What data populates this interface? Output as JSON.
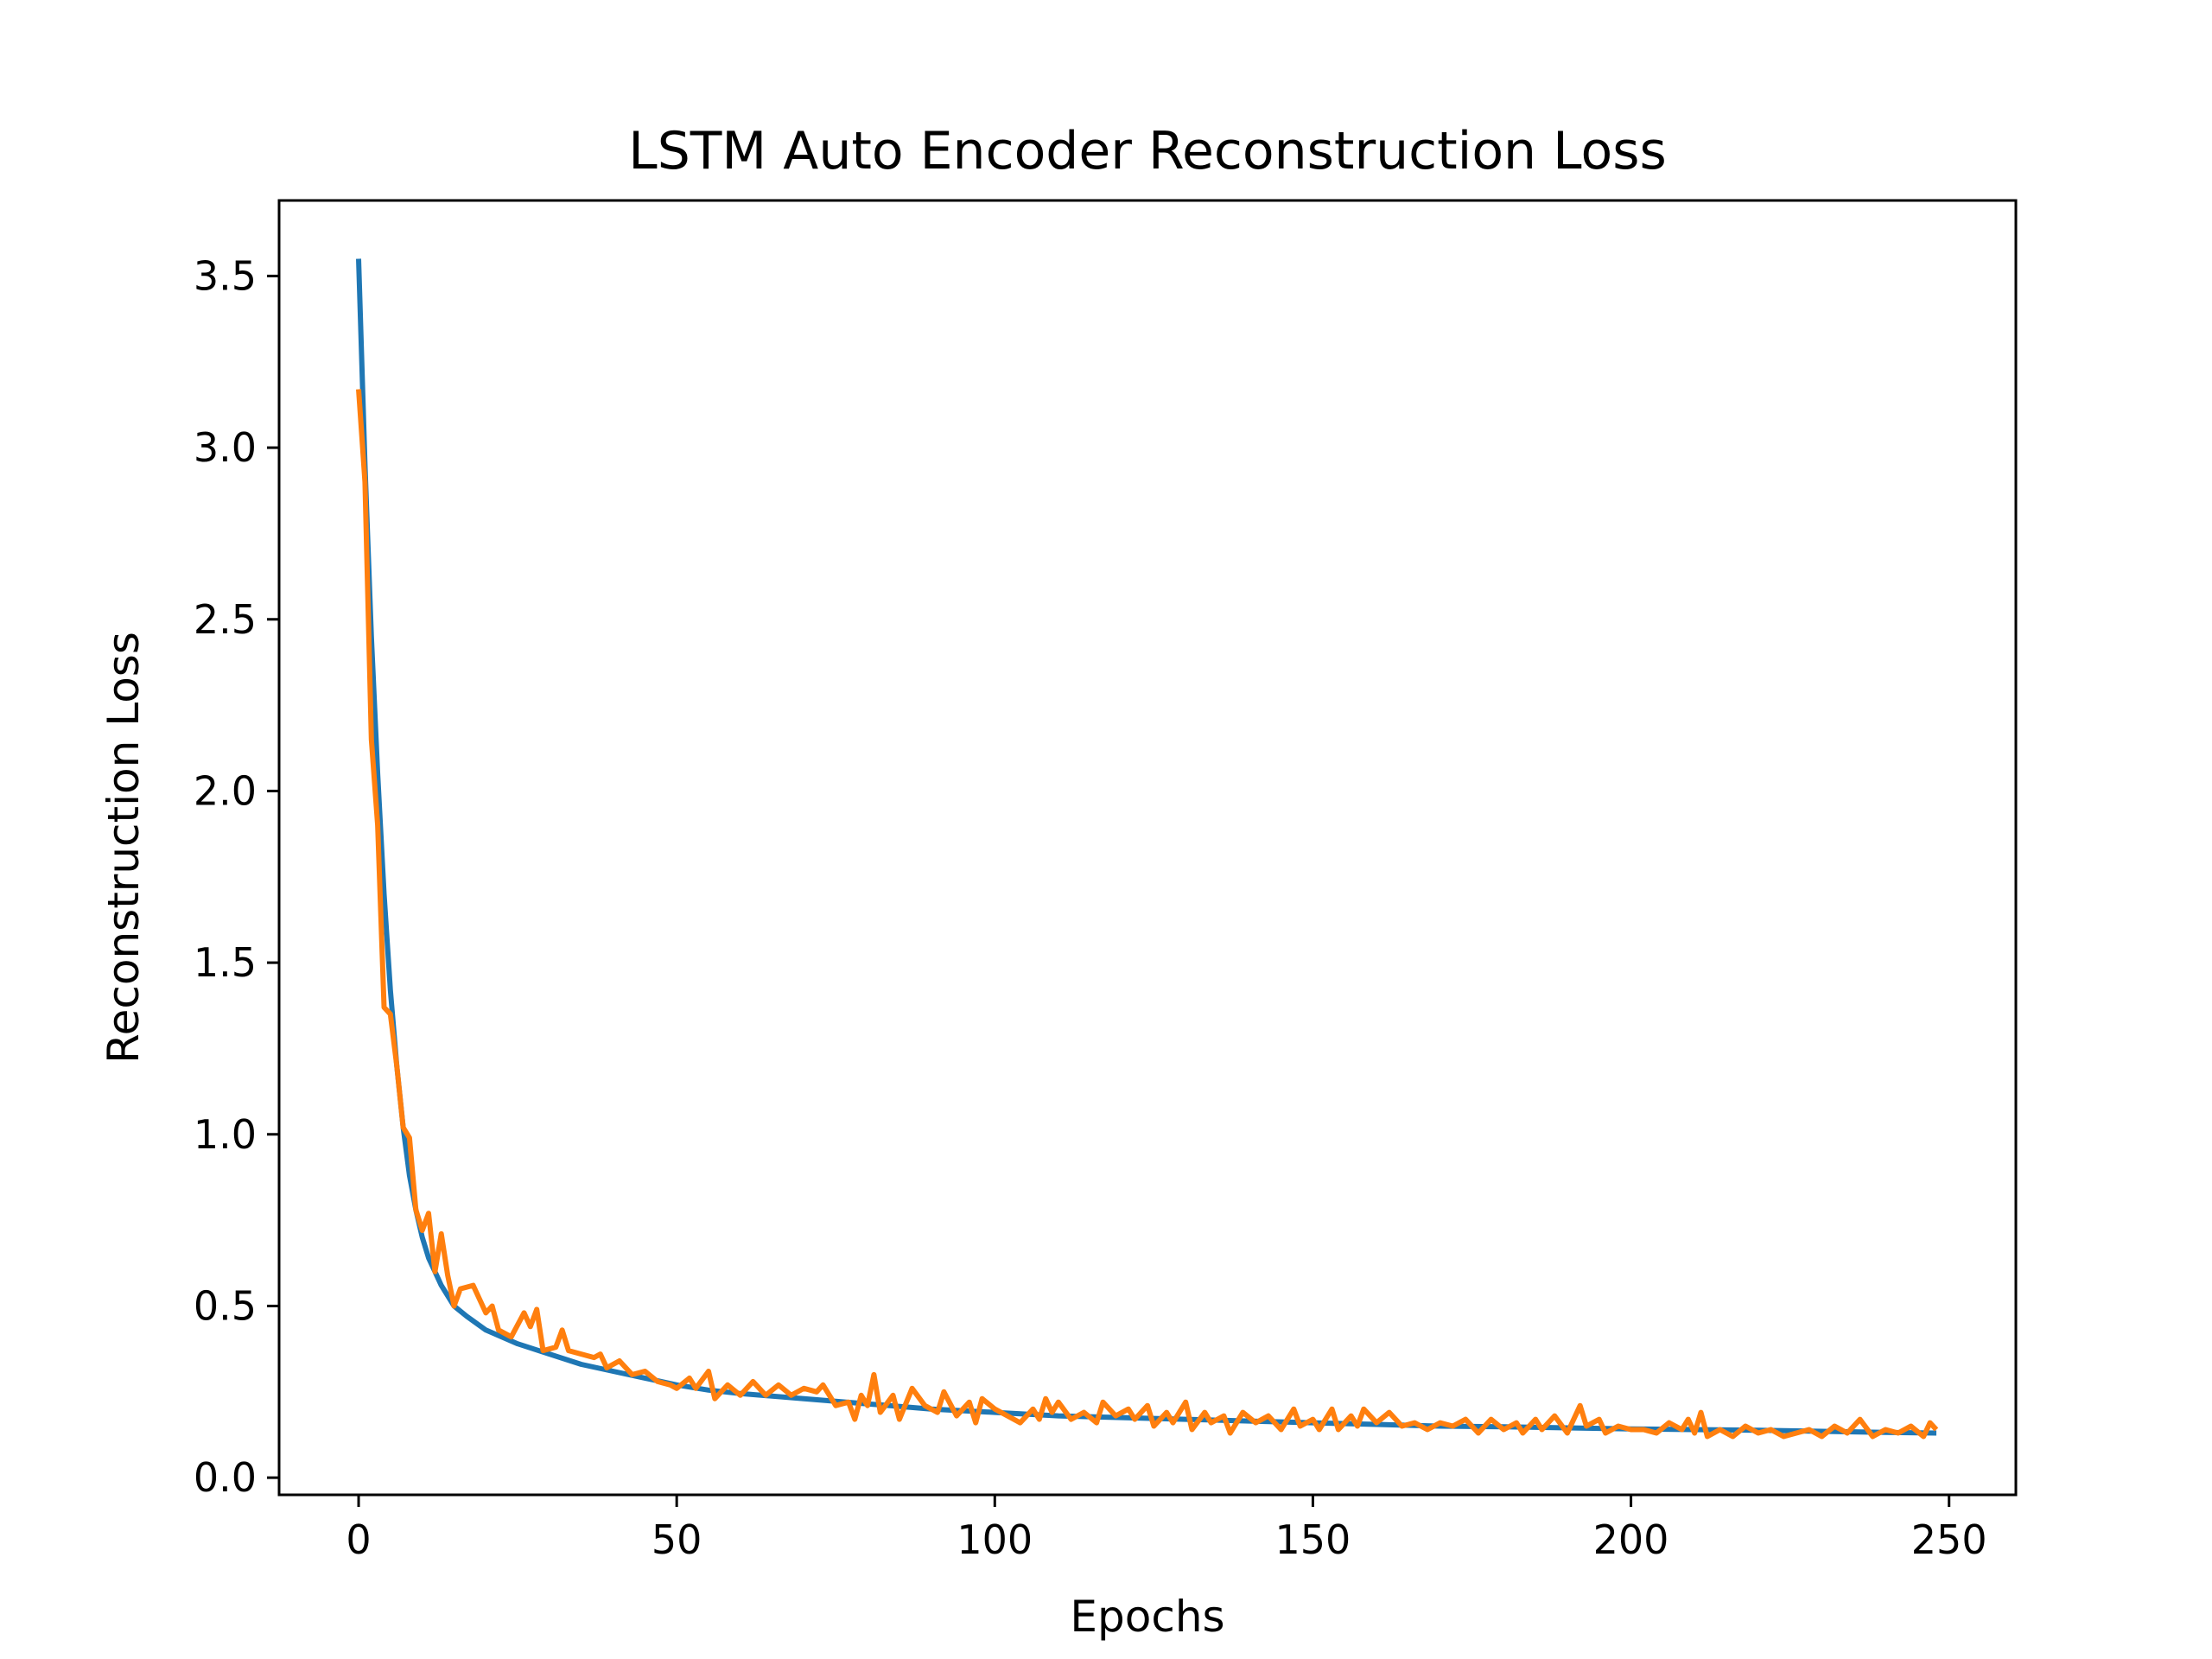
{
  "chart_data": {
    "type": "line",
    "title": "LSTM Auto Encoder Reconstruction Loss",
    "xlabel": "Epochs",
    "ylabel": "Reconstruction Loss",
    "xlim": [
      -12.5,
      260.5
    ],
    "ylim": [
      -0.05,
      3.72
    ],
    "xticks": [
      0,
      50,
      100,
      150,
      200,
      250
    ],
    "yticks": [
      0.0,
      0.5,
      1.0,
      1.5,
      2.0,
      2.5,
      3.0,
      3.5
    ],
    "xtick_labels": [
      "0",
      "50",
      "100",
      "150",
      "200",
      "250"
    ],
    "ytick_labels": [
      "0.0",
      "0.5",
      "1.0",
      "1.5",
      "2.0",
      "2.5",
      "3.0",
      "3.5"
    ],
    "grid": false,
    "series": [
      {
        "color": "#1f77b4",
        "points": [
          [
            0,
            3.55
          ],
          [
            1,
            2.95
          ],
          [
            2,
            2.45
          ],
          [
            3,
            2.05
          ],
          [
            4,
            1.7
          ],
          [
            5,
            1.42
          ],
          [
            6,
            1.2
          ],
          [
            7,
            1.02
          ],
          [
            8,
            0.88
          ],
          [
            9,
            0.78
          ],
          [
            10,
            0.7
          ],
          [
            11,
            0.64
          ],
          [
            12,
            0.6
          ],
          [
            13,
            0.56
          ],
          [
            14,
            0.53
          ],
          [
            15,
            0.5
          ],
          [
            17,
            0.47
          ],
          [
            20,
            0.43
          ],
          [
            25,
            0.39
          ],
          [
            30,
            0.36
          ],
          [
            35,
            0.33
          ],
          [
            40,
            0.31
          ],
          [
            45,
            0.29
          ],
          [
            50,
            0.27
          ],
          [
            55,
            0.255
          ],
          [
            60,
            0.245
          ],
          [
            70,
            0.23
          ],
          [
            80,
            0.215
          ],
          [
            90,
            0.2
          ],
          [
            100,
            0.19
          ],
          [
            110,
            0.18
          ],
          [
            120,
            0.175
          ],
          [
            130,
            0.17
          ],
          [
            140,
            0.165
          ],
          [
            150,
            0.16
          ],
          [
            160,
            0.155
          ],
          [
            170,
            0.15
          ],
          [
            180,
            0.148
          ],
          [
            190,
            0.145
          ],
          [
            200,
            0.142
          ],
          [
            210,
            0.14
          ],
          [
            220,
            0.138
          ],
          [
            230,
            0.135
          ],
          [
            240,
            0.132
          ],
          [
            248,
            0.13
          ]
        ]
      },
      {
        "color": "#ff7f0e",
        "points": [
          [
            0,
            3.17
          ],
          [
            1,
            2.9
          ],
          [
            2,
            2.15
          ],
          [
            3,
            1.9
          ],
          [
            4,
            1.37
          ],
          [
            5,
            1.35
          ],
          [
            6,
            1.2
          ],
          [
            7,
            1.02
          ],
          [
            8,
            0.99
          ],
          [
            9,
            0.78
          ],
          [
            10,
            0.72
          ],
          [
            11,
            0.77
          ],
          [
            12,
            0.6
          ],
          [
            13,
            0.71
          ],
          [
            14,
            0.59
          ],
          [
            15,
            0.5
          ],
          [
            16,
            0.55
          ],
          [
            18,
            0.56
          ],
          [
            20,
            0.48
          ],
          [
            21,
            0.5
          ],
          [
            22,
            0.43
          ],
          [
            24,
            0.41
          ],
          [
            26,
            0.48
          ],
          [
            27,
            0.44
          ],
          [
            28,
            0.49
          ],
          [
            29,
            0.37
          ],
          [
            31,
            0.38
          ],
          [
            32,
            0.43
          ],
          [
            33,
            0.37
          ],
          [
            35,
            0.36
          ],
          [
            37,
            0.35
          ],
          [
            38,
            0.36
          ],
          [
            39,
            0.32
          ],
          [
            41,
            0.34
          ],
          [
            43,
            0.3
          ],
          [
            45,
            0.31
          ],
          [
            47,
            0.28
          ],
          [
            49,
            0.27
          ],
          [
            50,
            0.26
          ],
          [
            52,
            0.29
          ],
          [
            53,
            0.26
          ],
          [
            55,
            0.31
          ],
          [
            56,
            0.23
          ],
          [
            58,
            0.27
          ],
          [
            60,
            0.24
          ],
          [
            62,
            0.28
          ],
          [
            64,
            0.24
          ],
          [
            66,
            0.27
          ],
          [
            68,
            0.24
          ],
          [
            70,
            0.26
          ],
          [
            72,
            0.25
          ],
          [
            73,
            0.27
          ],
          [
            75,
            0.21
          ],
          [
            77,
            0.22
          ],
          [
            78,
            0.17
          ],
          [
            79,
            0.24
          ],
          [
            80,
            0.21
          ],
          [
            81,
            0.3
          ],
          [
            82,
            0.19
          ],
          [
            84,
            0.24
          ],
          [
            85,
            0.17
          ],
          [
            87,
            0.26
          ],
          [
            89,
            0.21
          ],
          [
            91,
            0.19
          ],
          [
            92,
            0.25
          ],
          [
            94,
            0.18
          ],
          [
            96,
            0.22
          ],
          [
            97,
            0.16
          ],
          [
            98,
            0.23
          ],
          [
            100,
            0.2
          ],
          [
            102,
            0.18
          ],
          [
            104,
            0.16
          ],
          [
            106,
            0.2
          ],
          [
            107,
            0.17
          ],
          [
            108,
            0.23
          ],
          [
            109,
            0.19
          ],
          [
            110,
            0.22
          ],
          [
            112,
            0.17
          ],
          [
            114,
            0.19
          ],
          [
            116,
            0.16
          ],
          [
            117,
            0.22
          ],
          [
            119,
            0.18
          ],
          [
            121,
            0.2
          ],
          [
            122,
            0.17
          ],
          [
            124,
            0.21
          ],
          [
            125,
            0.15
          ],
          [
            127,
            0.19
          ],
          [
            128,
            0.16
          ],
          [
            130,
            0.22
          ],
          [
            131,
            0.14
          ],
          [
            133,
            0.19
          ],
          [
            134,
            0.16
          ],
          [
            136,
            0.18
          ],
          [
            137,
            0.13
          ],
          [
            139,
            0.19
          ],
          [
            141,
            0.16
          ],
          [
            143,
            0.18
          ],
          [
            145,
            0.14
          ],
          [
            147,
            0.2
          ],
          [
            148,
            0.15
          ],
          [
            150,
            0.17
          ],
          [
            151,
            0.14
          ],
          [
            153,
            0.2
          ],
          [
            154,
            0.14
          ],
          [
            156,
            0.18
          ],
          [
            157,
            0.15
          ],
          [
            158,
            0.2
          ],
          [
            160,
            0.16
          ],
          [
            162,
            0.19
          ],
          [
            164,
            0.15
          ],
          [
            166,
            0.16
          ],
          [
            168,
            0.14
          ],
          [
            170,
            0.16
          ],
          [
            172,
            0.15
          ],
          [
            174,
            0.17
          ],
          [
            176,
            0.13
          ],
          [
            178,
            0.17
          ],
          [
            180,
            0.14
          ],
          [
            182,
            0.16
          ],
          [
            183,
            0.13
          ],
          [
            185,
            0.17
          ],
          [
            186,
            0.14
          ],
          [
            188,
            0.18
          ],
          [
            190,
            0.13
          ],
          [
            192,
            0.21
          ],
          [
            193,
            0.15
          ],
          [
            195,
            0.17
          ],
          [
            196,
            0.13
          ],
          [
            198,
            0.15
          ],
          [
            200,
            0.14
          ],
          [
            202,
            0.14
          ],
          [
            204,
            0.13
          ],
          [
            206,
            0.16
          ],
          [
            208,
            0.14
          ],
          [
            209,
            0.17
          ],
          [
            210,
            0.13
          ],
          [
            211,
            0.19
          ],
          [
            212,
            0.12
          ],
          [
            214,
            0.14
          ],
          [
            216,
            0.12
          ],
          [
            218,
            0.15
          ],
          [
            220,
            0.13
          ],
          [
            222,
            0.14
          ],
          [
            224,
            0.12
          ],
          [
            226,
            0.13
          ],
          [
            228,
            0.14
          ],
          [
            230,
            0.12
          ],
          [
            232,
            0.15
          ],
          [
            234,
            0.13
          ],
          [
            236,
            0.17
          ],
          [
            238,
            0.12
          ],
          [
            240,
            0.14
          ],
          [
            242,
            0.13
          ],
          [
            244,
            0.15
          ],
          [
            246,
            0.12
          ],
          [
            247,
            0.16
          ],
          [
            248,
            0.14
          ]
        ]
      }
    ]
  }
}
